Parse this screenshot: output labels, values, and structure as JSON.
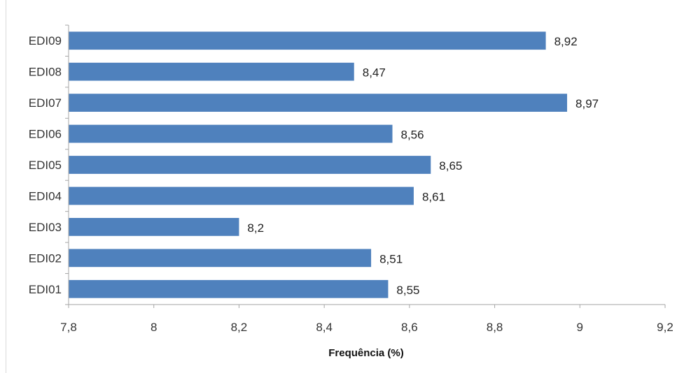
{
  "chart_data": {
    "type": "bar",
    "orientation": "horizontal",
    "categories": [
      "EDI09",
      "EDI08",
      "EDI07",
      "EDI06",
      "EDI05",
      "EDI04",
      "EDI03",
      "EDI02",
      "EDI01"
    ],
    "values": [
      8.92,
      8.47,
      8.97,
      8.56,
      8.65,
      8.61,
      8.2,
      8.51,
      8.55
    ],
    "value_labels": [
      "8,92",
      "8,47",
      "8,97",
      "8,56",
      "8,65",
      "8,61",
      "8,2",
      "8,51",
      "8,55"
    ],
    "xlabel": "Frequência (%)",
    "xlim": [
      7.8,
      9.2
    ],
    "xticks": [
      7.8,
      8.0,
      8.2,
      8.4,
      8.6,
      8.8,
      9.0,
      9.2
    ],
    "xtick_labels": [
      "7,8",
      "8",
      "8,2",
      "8,4",
      "8,6",
      "8,8",
      "9",
      "9,2"
    ],
    "grid": false,
    "legend": "none",
    "bar_color": "#4f81bd",
    "axis_color": "#a6a6a6"
  }
}
